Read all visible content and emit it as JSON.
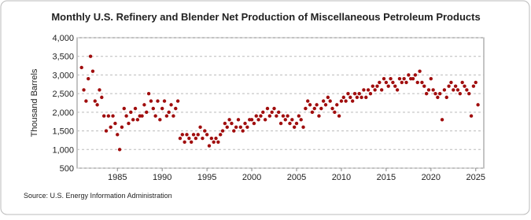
{
  "chart_data": {
    "type": "scatter",
    "title": "Monthly U.S. Refinery and Blender Net Production of Miscellaneous Petroleum Products",
    "y_label": "Thousand Barrels",
    "source": "Source: U.S. Energy Information Administration",
    "color": "#a00d0d",
    "grid": true,
    "xlim": [
      1980.5,
      2025.9
    ],
    "xticks": [
      1985,
      1990,
      1995,
      2000,
      2005,
      2010,
      2015,
      2020,
      2025
    ],
    "ylim": [
      500,
      4000
    ],
    "yticks": [
      {
        "value": 500,
        "label": "500"
      },
      {
        "value": 1000,
        "label": "1,000"
      },
      {
        "value": 1500,
        "label": "1,500"
      },
      {
        "value": 2000,
        "label": "2,000"
      },
      {
        "value": 2500,
        "label": "2,500"
      },
      {
        "value": 3000,
        "label": "3,000"
      },
      {
        "value": 3500,
        "label": "3,500"
      },
      {
        "value": 4000,
        "label": "4,000"
      }
    ],
    "x": [
      1981,
      1981.25,
      1981.5,
      1981.75,
      1982,
      1982.25,
      1982.5,
      1982.75,
      1983,
      1983.25,
      1983.5,
      1983.75,
      1984,
      1984.25,
      1984.5,
      1984.75,
      1985,
      1985.25,
      1985.5,
      1985.75,
      1986,
      1986.25,
      1986.5,
      1986.75,
      1987,
      1987.25,
      1987.5,
      1987.75,
      1988,
      1988.25,
      1988.5,
      1988.75,
      1989,
      1989.25,
      1989.5,
      1989.75,
      1990,
      1990.25,
      1990.5,
      1990.75,
      1991,
      1991.25,
      1991.5,
      1991.75,
      1992,
      1992.25,
      1992.5,
      1992.75,
      1993,
      1993.25,
      1993.5,
      1993.75,
      1994,
      1994.25,
      1994.5,
      1994.75,
      1995,
      1995.25,
      1995.5,
      1995.75,
      1996,
      1996.25,
      1996.5,
      1996.75,
      1997,
      1997.25,
      1997.5,
      1997.75,
      1998,
      1998.25,
      1998.5,
      1998.75,
      1999,
      1999.25,
      1999.5,
      1999.75,
      2000,
      2000.25,
      2000.5,
      2000.75,
      2001,
      2001.25,
      2001.5,
      2001.75,
      2002,
      2002.25,
      2002.5,
      2002.75,
      2003,
      2003.25,
      2003.5,
      2003.75,
      2004,
      2004.25,
      2004.5,
      2004.75,
      2005,
      2005.25,
      2005.5,
      2005.75,
      2006,
      2006.25,
      2006.5,
      2006.75,
      2007,
      2007.25,
      2007.5,
      2007.75,
      2008,
      2008.25,
      2008.5,
      2008.75,
      2009,
      2009.25,
      2009.5,
      2009.75,
      2010,
      2010.25,
      2010.5,
      2010.75,
      2011,
      2011.25,
      2011.5,
      2011.75,
      2012,
      2012.25,
      2012.5,
      2012.75,
      2013,
      2013.25,
      2013.5,
      2013.75,
      2014,
      2014.25,
      2014.5,
      2014.75,
      2015,
      2015.25,
      2015.5,
      2015.75,
      2016,
      2016.25,
      2016.5,
      2016.75,
      2017,
      2017.25,
      2017.5,
      2017.75,
      2018,
      2018.25,
      2018.5,
      2018.75,
      2019,
      2019.25,
      2019.5,
      2019.75,
      2020,
      2020.25,
      2020.5,
      2020.75,
      2021,
      2021.25,
      2021.5,
      2021.75,
      2022,
      2022.25,
      2022.5,
      2022.75,
      2023,
      2023.25,
      2023.5,
      2023.75,
      2024,
      2024.25,
      2024.5,
      2024.75,
      2025,
      2025.25
    ],
    "values": [
      3200,
      2600,
      2300,
      2900,
      3500,
      3100,
      2300,
      2200,
      2600,
      2400,
      1900,
      1500,
      1900,
      1600,
      1900,
      1700,
      1400,
      1000,
      1600,
      2100,
      1900,
      1700,
      2000,
      1800,
      2100,
      1800,
      1900,
      1900,
      2200,
      2000,
      2500,
      2300,
      2100,
      1900,
      2300,
      1800,
      2100,
      2300,
      1900,
      2000,
      2200,
      1900,
      2100,
      2300,
      1300,
      1400,
      1200,
      1400,
      1300,
      1200,
      1400,
      1300,
      1400,
      1600,
      1300,
      1500,
      1400,
      1100,
      1300,
      1200,
      1300,
      1200,
      1400,
      1500,
      1700,
      1600,
      1800,
      1700,
      1500,
      1600,
      1800,
      1600,
      1500,
      1700,
      1600,
      1800,
      1800,
      1700,
      1900,
      1800,
      1900,
      2000,
      1800,
      2100,
      1900,
      2000,
      2100,
      1900,
      2000,
      1700,
      1900,
      1800,
      1900,
      1700,
      1800,
      1600,
      1700,
      1900,
      1800,
      1600,
      2100,
      2300,
      2200,
      2000,
      2100,
      2200,
      1900,
      2100,
      2300,
      2200,
      2400,
      2300,
      2100,
      2000,
      2200,
      1900,
      2300,
      2400,
      2300,
      2500,
      2400,
      2300,
      2500,
      2400,
      2500,
      2400,
      2600,
      2400,
      2600,
      2500,
      2700,
      2600,
      2700,
      2800,
      2600,
      2900,
      2800,
      2700,
      2900,
      2800,
      2700,
      2600,
      2900,
      2800,
      2900,
      2800,
      3000,
      2900,
      2900,
      3000,
      2800,
      3100,
      2800,
      2700,
      2500,
      2600,
      2900,
      2600,
      2500,
      2400,
      2500,
      1800,
      2600,
      2400,
      2700,
      2800,
      2600,
      2700,
      2600,
      2500,
      2800,
      2700,
      2600,
      2500,
      1900,
      2700,
      2800,
      2200
    ]
  }
}
